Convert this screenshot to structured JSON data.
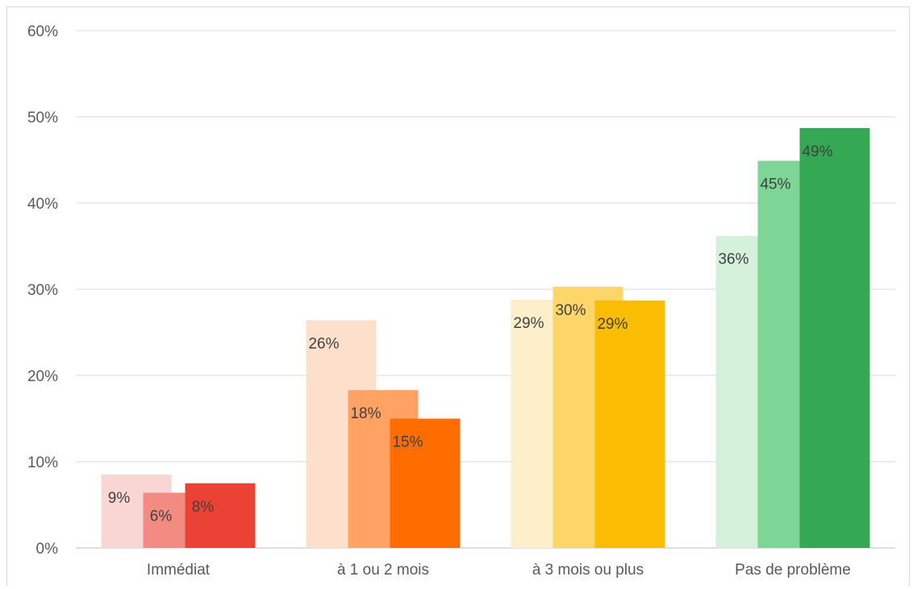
{
  "chart_data": {
    "type": "bar",
    "categories": [
      "Immédiat",
      "à 1 ou 2 mois",
      "à 3 mois ou plus",
      "Pas de problème"
    ],
    "series": [
      {
        "values": [
          8.5,
          26.4,
          28.8,
          36.2
        ]
      },
      {
        "values": [
          6.4,
          18.3,
          30.3,
          44.9
        ]
      },
      {
        "values": [
          7.5,
          15.0,
          28.7,
          48.7
        ]
      }
    ],
    "data_labels": [
      [
        "9%",
        "26%",
        "29%",
        "36%"
      ],
      [
        "6%",
        "18%",
        "30%",
        "45%"
      ],
      [
        "8%",
        "15%",
        "29%",
        "49%"
      ]
    ],
    "colors": [
      [
        "#f9d5d3",
        "#f28b82",
        "#ea4335"
      ],
      [
        "#fde0cc",
        "#ffa263",
        "#ff6d01"
      ],
      [
        "#fcefc9",
        "#fcd668",
        "#fbbc04"
      ],
      [
        "#d5f0db",
        "#7dd695",
        "#34a853"
      ]
    ],
    "ylim": [
      0,
      60
    ],
    "yticks": [
      "0%",
      "10%",
      "20%",
      "30%",
      "40%",
      "50%",
      "60%"
    ],
    "grid": true,
    "legend": "none"
  }
}
